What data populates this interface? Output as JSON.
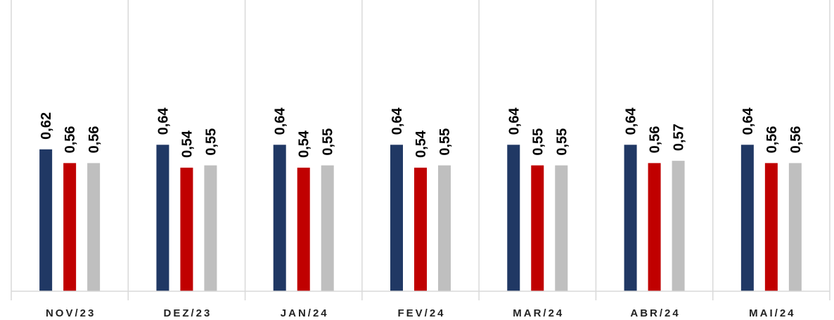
{
  "chart_data": {
    "type": "bar",
    "title": "",
    "xlabel": "",
    "ylabel": "",
    "ylim": [
      0,
      1.15
    ],
    "grid": "vertical category separators",
    "legend": "none",
    "categories": [
      "NOV/23",
      "DEZ/23",
      "JAN/24",
      "FEV/24",
      "MAR/24",
      "ABR/24",
      "MAI/24"
    ],
    "series": [
      {
        "color": "#203864",
        "values": [
          0.62,
          0.64,
          0.64,
          0.64,
          0.64,
          0.64,
          0.64
        ],
        "labels": [
          "0,62",
          "0,64",
          "0,64",
          "0,64",
          "0,64",
          "0,64",
          "0,64"
        ]
      },
      {
        "color": "#c00000",
        "values": [
          0.56,
          0.54,
          0.54,
          0.54,
          0.55,
          0.56,
          0.56
        ],
        "labels": [
          "0,56",
          "0,54",
          "0,54",
          "0,54",
          "0,55",
          "0,56",
          "0,56"
        ]
      },
      {
        "color": "#bfbfbf",
        "values": [
          0.56,
          0.55,
          0.55,
          0.55,
          0.55,
          0.57,
          0.56
        ],
        "labels": [
          "0,56",
          "0,55",
          "0,55",
          "0,55",
          "0,55",
          "0,57",
          "0,56"
        ]
      }
    ]
  }
}
